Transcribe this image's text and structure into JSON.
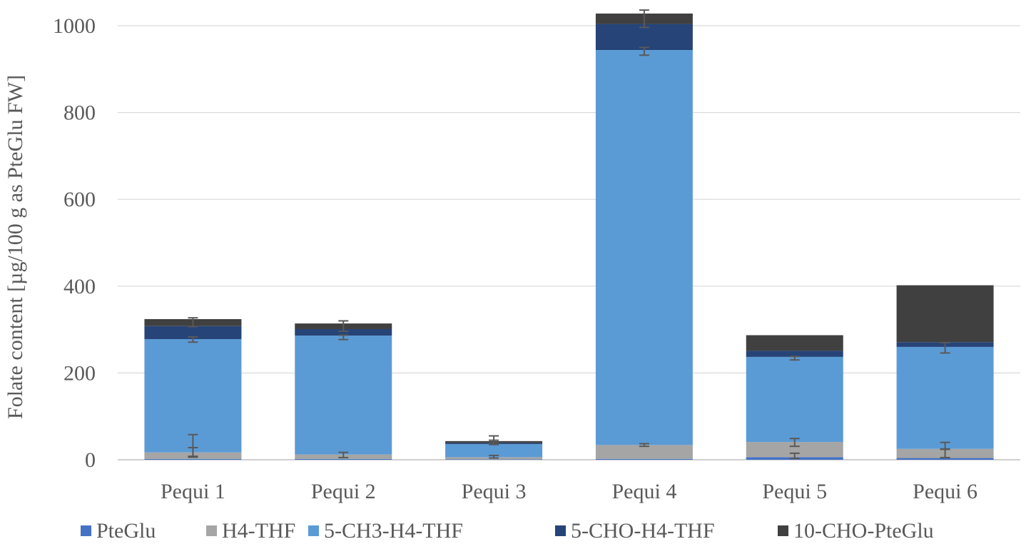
{
  "chart_data": {
    "type": "bar",
    "stacked": true,
    "categories": [
      "Pequi 1",
      "Pequi 2",
      "Pequi 3",
      "Pequi 4",
      "Pequi 5",
      "Pequi 6"
    ],
    "series": [
      {
        "name": "PteGlu",
        "color": "#4472C4",
        "values": [
          2,
          2,
          1,
          2,
          6,
          4
        ]
      },
      {
        "name": "H4-THF",
        "color": "#A5A5A5",
        "values": [
          15,
          10,
          5,
          32,
          35,
          21
        ]
      },
      {
        "name": "5-CH3-H4-THF",
        "color": "#5B9BD5",
        "values": [
          261,
          274,
          30,
          910,
          196,
          235
        ]
      },
      {
        "name": "5-CHO-H4-THF",
        "color": "#264478",
        "values": [
          30,
          15,
          3,
          60,
          14,
          11
        ]
      },
      {
        "name": "10-CHO-PteGlu",
        "color": "#404040",
        "values": [
          16,
          13,
          4,
          24,
          36,
          131
        ]
      }
    ],
    "error_bars": [
      {
        "category": "Pequi 1",
        "series": "PteGlu",
        "center": 18,
        "err": 10
      },
      {
        "category": "Pequi 1",
        "series": "H4-THF",
        "center": 32,
        "err": 26
      },
      {
        "category": "Pequi 1",
        "series": "5-CH3-H4-THF",
        "center": 277,
        "err": 6
      },
      {
        "category": "Pequi 1",
        "series": "10-CHO-PteGlu",
        "center": 317,
        "err": 10
      },
      {
        "category": "Pequi 2",
        "series": "H4-THF",
        "center": 11,
        "err": 6
      },
      {
        "category": "Pequi 2",
        "series": "5-CH3-H4-THF",
        "center": 282,
        "err": 5
      },
      {
        "category": "Pequi 2",
        "series": "10-CHO-PteGlu",
        "center": 308,
        "err": 12
      },
      {
        "category": "Pequi 3",
        "series": "H4-THF",
        "center": 7,
        "err": 3
      },
      {
        "category": "Pequi 3",
        "series": "5-CH3-H4-THF",
        "center": 40,
        "err": 5
      },
      {
        "category": "Pequi 3",
        "series": "10-CHO-PteGlu",
        "center": 47,
        "err": 8
      },
      {
        "category": "Pequi 4",
        "series": "H4-THF",
        "center": 34,
        "err": 3
      },
      {
        "category": "Pequi 4",
        "series": "5-CH3-H4-THF",
        "center": 941,
        "err": 9
      },
      {
        "category": "Pequi 4",
        "series": "10-CHO-PteGlu",
        "center": 1016,
        "err": 20
      },
      {
        "category": "Pequi 5",
        "series": "PteGlu",
        "center": 9,
        "err": 6
      },
      {
        "category": "Pequi 5",
        "series": "H4-THF",
        "center": 40,
        "err": 9
      },
      {
        "category": "Pequi 5",
        "series": "5-CH3-H4-THF",
        "center": 234,
        "err": 4
      },
      {
        "category": "Pequi 6",
        "series": "PteGlu",
        "center": 15,
        "err": 10
      },
      {
        "category": "Pequi 6",
        "series": "H4-THF",
        "center": 32,
        "err": 8
      },
      {
        "category": "Pequi 6",
        "series": "5-CH3-H4-THF",
        "center": 258,
        "err": 12
      }
    ],
    "title": "",
    "xlabel": "",
    "ylabel": "Folate content [µg/100 g as PteGlu FW]",
    "ylim": [
      0,
      1000
    ],
    "yticks": [
      "0",
      "200",
      "400",
      "600",
      "800",
      "1000"
    ],
    "grid": true,
    "legend_position": "bottom",
    "colors": {
      "grid": "#D9D9D9",
      "text": "#595959",
      "error_bar": "#595959"
    }
  }
}
